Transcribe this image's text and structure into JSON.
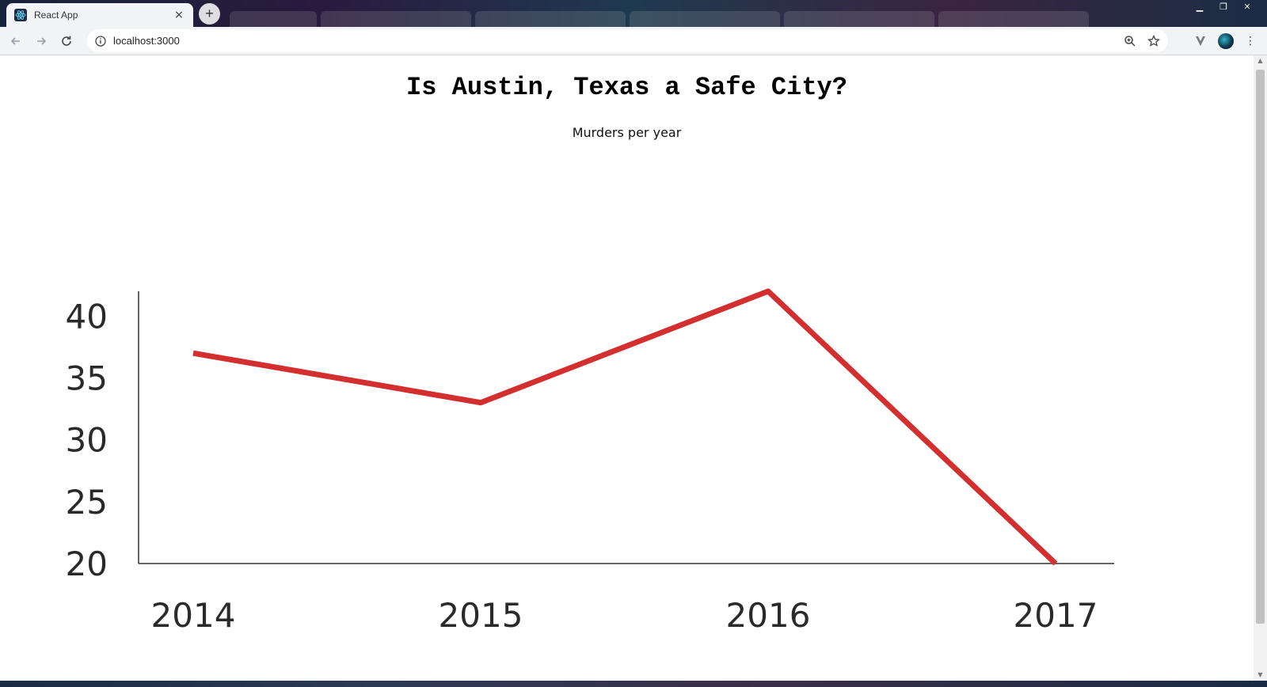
{
  "browser": {
    "tab_title": "React App",
    "url": "localhost:3000",
    "tab_close": "×",
    "new_tab": "+",
    "window_controls": [
      "▁",
      "❐",
      "✕"
    ]
  },
  "page": {
    "title": "Is Austin, Texas a Safe City?"
  },
  "chart_data": {
    "type": "line",
    "title": "Murders per year",
    "x": [
      "2014",
      "2015",
      "2016",
      "2017"
    ],
    "series": [
      {
        "values": [
          37,
          33,
          42,
          20
        ],
        "color": "#d32f2f"
      }
    ],
    "yticks": [
      20,
      25,
      30,
      35,
      40
    ],
    "ylim": [
      20,
      42
    ],
    "xlabel": "",
    "ylabel": "",
    "grid": false
  }
}
